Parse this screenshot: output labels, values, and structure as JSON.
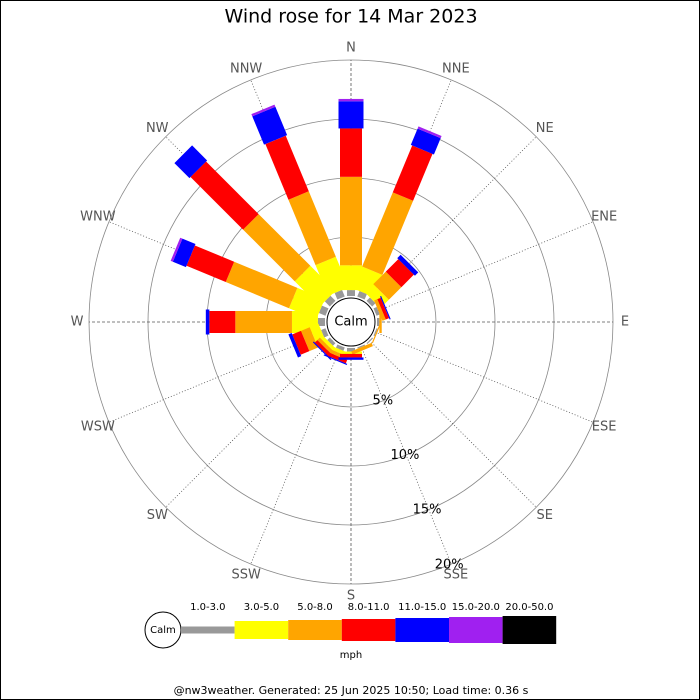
{
  "chart_data": {
    "type": "windrose",
    "title": "Wind rose for 14 Mar 2023",
    "categories": [
      "N",
      "NNE",
      "NE",
      "ENE",
      "E",
      "ESE",
      "SE",
      "SSE",
      "S",
      "SSW",
      "SW",
      "WSW",
      "W",
      "WNW",
      "NW",
      "NNW"
    ],
    "calm_label": "Calm",
    "rlim": [
      0,
      20
    ],
    "rticks": [
      {
        "value": 5,
        "label": "5%"
      },
      {
        "value": 10,
        "label": "10%"
      },
      {
        "value": 15,
        "label": "15%"
      },
      {
        "value": 20,
        "label": "20%"
      }
    ],
    "legend_unit": "mph",
    "series": [
      {
        "name": "1.0-3.0",
        "color": "#999999",
        "values": [
          0.5,
          0.5,
          0.4,
          0.3,
          0.2,
          0.1,
          0.1,
          0.1,
          0.3,
          0.3,
          0.3,
          0.4,
          0.6,
          0.6,
          0.6,
          0.6
        ]
      },
      {
        "name": "3.0-5.0",
        "color": "#ffff00",
        "values": [
          2.1,
          2,
          1,
          0,
          0,
          0,
          0,
          0,
          0.2,
          0.3,
          0.3,
          0.8,
          2.2,
          2.5,
          3,
          2.8
        ]
      },
      {
        "name": "5.0-8.0",
        "color": "#ffa500",
        "values": [
          7.5,
          6.8,
          1.5,
          0.3,
          0.2,
          0.1,
          0,
          0.3,
          0,
          0.3,
          0.3,
          0.8,
          4.8,
          5.8,
          6.2,
          6
        ]
      },
      {
        "name": "8.0-11.0",
        "color": "#ff0000",
        "values": [
          4.1,
          4.3,
          1.5,
          0.3,
          0,
          0,
          0,
          0,
          0.3,
          0.3,
          0.3,
          0.8,
          2.2,
          3.6,
          6.3,
          5.1
        ]
      },
      {
        "name": "11.0-15.0",
        "color": "#0000ff",
        "values": [
          2.3,
          1.5,
          0.4,
          0.1,
          0,
          0,
          0,
          0,
          0.2,
          0.1,
          0.1,
          0.3,
          0.3,
          1.2,
          1.8,
          2.6
        ]
      },
      {
        "name": "15.0-20.0",
        "color": "#a020f0",
        "values": [
          0.2,
          0.2,
          0,
          0,
          0,
          0,
          0,
          0,
          0,
          0,
          0,
          0,
          0,
          0.2,
          0,
          0.2
        ]
      },
      {
        "name": "20.0-50.0",
        "color": "#000000",
        "values": [
          0,
          0,
          0,
          0,
          0,
          0,
          0,
          0,
          0,
          0,
          0,
          0,
          0,
          0,
          0,
          0
        ]
      }
    ],
    "footer": "@nw3weather. Generated: 25 Jun 2025 10:50; Load time: 0.36 s"
  }
}
